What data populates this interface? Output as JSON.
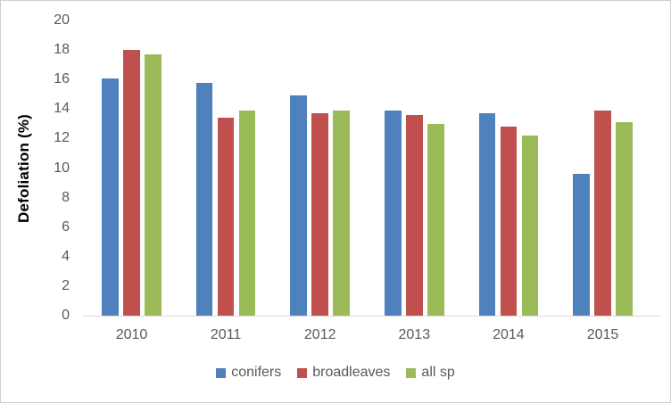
{
  "chart_data": {
    "type": "bar",
    "title": "",
    "xlabel": "",
    "ylabel": "Defoliation (%)",
    "categories": [
      "2010",
      "2011",
      "2012",
      "2013",
      "2014",
      "2015"
    ],
    "series": [
      {
        "name": "conifers",
        "color": "#4F81BD",
        "values": [
          16.1,
          15.8,
          14.9,
          13.9,
          13.7,
          9.6
        ]
      },
      {
        "name": "broadleaves",
        "color": "#C0504D",
        "values": [
          18.0,
          13.4,
          13.7,
          13.6,
          12.8,
          13.9
        ]
      },
      {
        "name": "all sp",
        "color": "#9BBB59",
        "values": [
          17.7,
          13.9,
          13.9,
          13.0,
          12.2,
          13.1
        ]
      }
    ],
    "ylim": [
      0,
      20
    ],
    "yticks": [
      0,
      2,
      4,
      6,
      8,
      10,
      12,
      14,
      16,
      18,
      20
    ],
    "grid": false,
    "legend_position": "bottom",
    "axis_text_color": "#595959",
    "baseline_color": "#D9D9D9"
  }
}
